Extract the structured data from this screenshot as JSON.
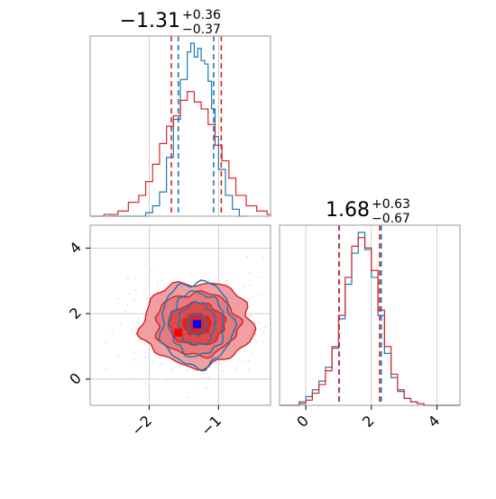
{
  "colors": {
    "blue": "#1f77b4",
    "red": "#d62728",
    "red_fill_light": "#f0a0a2",
    "red_fill_dark": "#d62728",
    "blue_marker": "#0000ff",
    "red_marker": "#ff0000",
    "grid": "#b0b0b0",
    "scatter_points": "#d9d9f5"
  },
  "chart_data": [
    {
      "type": "histogram",
      "panel": "top-left",
      "parameter": "x",
      "title_value": "−1.31",
      "title_plus": "+0.36",
      "title_minus": "−0.37",
      "xlim": [
        -2.85,
        -0.25
      ],
      "grid": true,
      "series": [
        {
          "color": "blue",
          "bin_edges": [
            -2.6,
            -2.4,
            -2.2,
            -2.05,
            -1.95,
            -1.85,
            -1.75,
            -1.65,
            -1.55,
            -1.45,
            -1.4,
            -1.35,
            -1.3,
            -1.25,
            -1.2,
            -1.15,
            -1.1,
            -1.05,
            -1.0,
            -0.9,
            -0.8,
            -0.7,
            -0.6
          ],
          "counts": [
            0,
            0,
            0,
            2,
            6,
            14,
            34,
            56,
            79,
            95,
            100,
            92,
            97,
            90,
            88,
            78,
            62,
            46,
            27,
            12,
            4,
            0
          ]
        },
        {
          "color": "red",
          "bin_edges": [
            -2.85,
            -2.65,
            -2.45,
            -2.3,
            -2.15,
            -2.05,
            -1.95,
            -1.85,
            -1.75,
            -1.65,
            -1.55,
            -1.45,
            -1.35,
            -1.25,
            -1.15,
            -1.05,
            -0.95,
            -0.85,
            -0.75,
            -0.6,
            -0.45,
            -0.3,
            -0.25
          ],
          "counts": [
            0,
            1,
            3,
            8,
            12,
            20,
            30,
            42,
            52,
            58,
            67,
            72,
            66,
            62,
            53,
            41,
            32,
            22,
            12,
            6,
            3,
            1
          ]
        }
      ],
      "quantile_lines": [
        {
          "color": "blue",
          "values": [
            -1.58,
            -1.07
          ]
        },
        {
          "color": "red",
          "values": [
            -1.68,
            -0.96
          ]
        }
      ]
    },
    {
      "type": "contour",
      "panel": "bottom-left",
      "xlim": [
        -2.85,
        -0.25
      ],
      "ylim": [
        -0.8,
        4.7
      ],
      "xticks": [
        -2,
        -1
      ],
      "xtick_labels": [
        "−2",
        "−1"
      ],
      "yticks": [
        0,
        2,
        4
      ],
      "ytick_labels": [
        "0",
        "2",
        "4"
      ],
      "grid": true,
      "red_contours": {
        "center": [
          -1.31,
          1.68
        ],
        "levels_sigma": [
          0.5,
          1.0,
          1.5,
          2.0
        ],
        "sigma_x": 0.4,
        "sigma_y": 0.64
      },
      "blue_contours": {
        "center": [
          -1.31,
          1.68
        ],
        "levels_sigma": [
          0.5,
          1.0,
          1.5,
          2.0
        ],
        "sigma_x": 0.26,
        "sigma_y": 0.65
      },
      "markers": [
        {
          "color": "blue",
          "x": -1.31,
          "y": 1.68
        },
        {
          "color": "red",
          "x": -1.58,
          "y": 1.42
        }
      ]
    },
    {
      "type": "histogram",
      "panel": "bottom-right",
      "parameter": "y",
      "title_value": "1.68",
      "title_plus": "+0.63",
      "title_minus": "−0.67",
      "xlim": [
        -0.8,
        4.7
      ],
      "xticks": [
        0,
        2,
        4
      ],
      "xtick_labels": [
        "0",
        "2",
        "4"
      ],
      "grid": true,
      "series": [
        {
          "color": "blue",
          "bin_edges": [
            -0.8,
            -0.2,
            0.0,
            0.2,
            0.4,
            0.6,
            0.8,
            1.0,
            1.2,
            1.4,
            1.6,
            1.8,
            2.0,
            2.2,
            2.4,
            2.6,
            2.8,
            3.0,
            3.2,
            3.4,
            3.6,
            4.2,
            4.7
          ],
          "counts": [
            0,
            2,
            5,
            9,
            14,
            22,
            33,
            50,
            70,
            88,
            100,
            90,
            74,
            52,
            30,
            16,
            8,
            4,
            2,
            1,
            0,
            0
          ]
        },
        {
          "color": "red",
          "bin_edges": [
            -0.8,
            -0.2,
            0.0,
            0.2,
            0.4,
            0.6,
            0.8,
            1.0,
            1.2,
            1.4,
            1.6,
            1.8,
            2.0,
            2.2,
            2.4,
            2.6,
            2.8,
            3.0,
            3.2,
            3.4,
            3.6,
            4.2,
            4.7
          ],
          "counts": [
            0,
            1,
            3,
            7,
            12,
            20,
            34,
            52,
            74,
            92,
            97,
            91,
            78,
            55,
            34,
            18,
            9,
            4,
            2,
            1,
            0,
            0
          ]
        }
      ],
      "quantile_lines": [
        {
          "color": "blue",
          "values": [
            1.02,
            2.3
          ]
        },
        {
          "color": "red",
          "values": [
            1.01,
            2.25
          ]
        }
      ]
    }
  ]
}
